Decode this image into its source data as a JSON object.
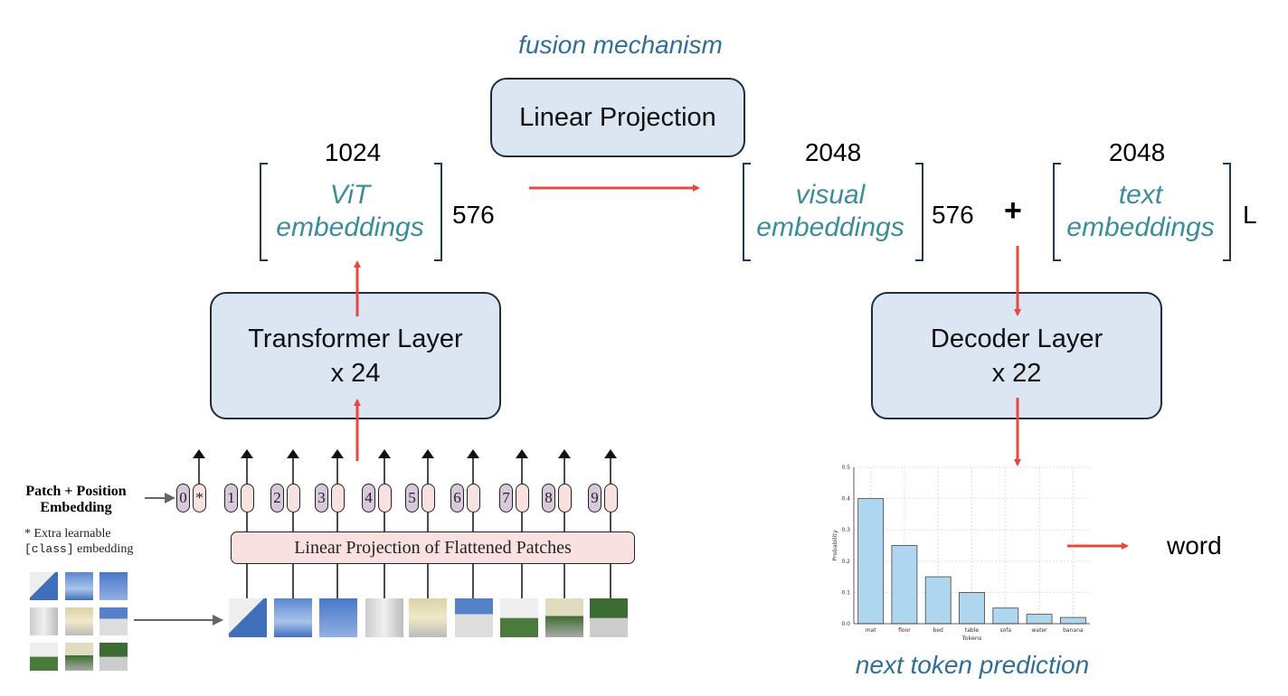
{
  "fusion": {
    "label": "fusion mechanism",
    "box": "Linear Projection"
  },
  "vit": {
    "dim": "1024",
    "label_line1": "ViT",
    "label_line2": "embeddings",
    "tokens": "576"
  },
  "visual": {
    "dim": "2048",
    "label_line1": "visual",
    "label_line2": "embeddings",
    "tokens": "576"
  },
  "plus": "+",
  "text": {
    "dim": "2048",
    "label_line1": "text",
    "label_line2": "embeddings",
    "tokens": "L"
  },
  "transformer": {
    "line1": "Transformer Layer",
    "line2": "x 24"
  },
  "decoder": {
    "line1": "Decoder Layer",
    "line2": "x 22"
  },
  "vit_figure": {
    "patch_label_line1": "Patch + Position",
    "patch_label_line2": "Embedding",
    "note_line1": "* Extra learnable",
    "note_code": "[class]",
    "note_rest": " embedding",
    "projection": "Linear Projection of Flattened Patches",
    "positions": [
      "0",
      "1",
      "2",
      "3",
      "4",
      "5",
      "6",
      "7",
      "8",
      "9"
    ],
    "class_marker": "*"
  },
  "output": {
    "word": "word",
    "caption": "next token prediction"
  },
  "colors": {
    "arrow": "#e8473f",
    "box_fill": "#dce6f2",
    "caption": "#2f6f98",
    "embedding_text": "#3b8d9c",
    "bar": "#aed6ee"
  },
  "chart_data": {
    "type": "bar",
    "categories": [
      "mat",
      "floor",
      "bed",
      "table",
      "sofa",
      "water",
      "banana"
    ],
    "values": [
      0.4,
      0.25,
      0.15,
      0.1,
      0.05,
      0.03,
      0.02
    ],
    "xlabel": "Tokens",
    "ylabel": "Probability",
    "ylim": [
      0,
      0.5
    ],
    "yticks": [
      "0.0",
      "0.1",
      "0.2",
      "0.3",
      "0.4",
      "0.5"
    ],
    "grid": true
  }
}
